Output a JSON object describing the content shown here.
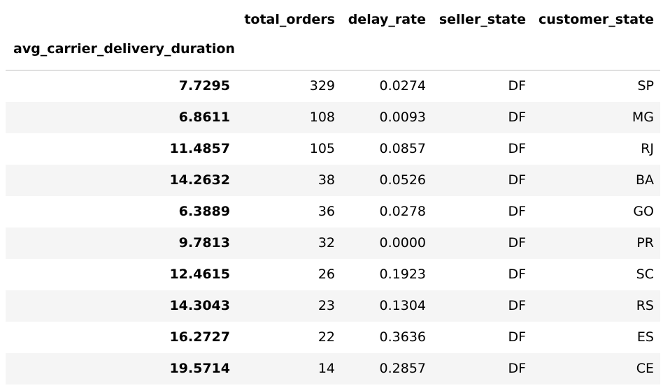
{
  "table": {
    "columns": [
      "total_orders",
      "delay_rate",
      "seller_state",
      "customer_state"
    ],
    "index_name": "avg_carrier_delivery_duration",
    "rows": [
      {
        "index": "7.7295",
        "cells": [
          "329",
          "0.0274",
          "DF",
          "SP"
        ]
      },
      {
        "index": "6.8611",
        "cells": [
          "108",
          "0.0093",
          "DF",
          "MG"
        ]
      },
      {
        "index": "11.4857",
        "cells": [
          "105",
          "0.0857",
          "DF",
          "RJ"
        ]
      },
      {
        "index": "14.2632",
        "cells": [
          "38",
          "0.0526",
          "DF",
          "BA"
        ]
      },
      {
        "index": "6.3889",
        "cells": [
          "36",
          "0.0278",
          "DF",
          "GO"
        ]
      },
      {
        "index": "9.7813",
        "cells": [
          "32",
          "0.0000",
          "DF",
          "PR"
        ]
      },
      {
        "index": "12.4615",
        "cells": [
          "26",
          "0.1923",
          "DF",
          "SC"
        ]
      },
      {
        "index": "14.3043",
        "cells": [
          "23",
          "0.1304",
          "DF",
          "RS"
        ]
      },
      {
        "index": "16.2727",
        "cells": [
          "22",
          "0.3636",
          "DF",
          "ES"
        ]
      },
      {
        "index": "19.5714",
        "cells": [
          "14",
          "0.2857",
          "DF",
          "CE"
        ]
      }
    ]
  }
}
